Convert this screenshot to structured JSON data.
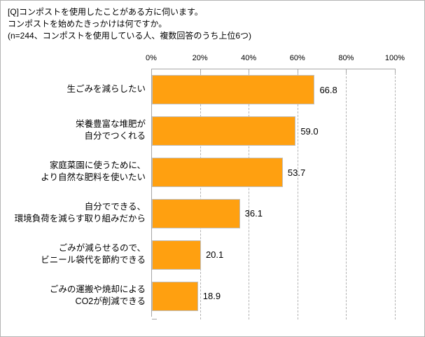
{
  "title": "[Q]コンポストを使用したことがある方に伺います。\nコンポストを始めたきっかけは何ですか。\n(n=244、コンポストを使用している人、複数回答のうち上位6つ)",
  "chart_data": {
    "type": "bar",
    "orientation": "horizontal",
    "title": "コンポストを始めたきっかけ（上位6つ）",
    "categories": [
      "生ごみを減らしたい",
      "栄養豊富な堆肥が\n自分でつくれる",
      "家庭菜園に使うために、\nより自然な肥料を使いたい",
      "自分でできる、\n環境負荷を減らす取り組みだから",
      "ごみが減らせるので、\nビニール袋代を節約できる",
      "ごみの運搬や焼却による\nCO2が削減できる"
    ],
    "values": [
      66.8,
      59.0,
      53.7,
      36.1,
      20.1,
      18.9
    ],
    "value_labels": [
      "66.8",
      "59.0",
      "53.7",
      "36.1",
      "20.1",
      "18.9"
    ],
    "xlim": [
      0,
      100
    ],
    "x_tick_labels": [
      "0%",
      "20%",
      "40%",
      "60%",
      "80%",
      "100%"
    ],
    "x_tick_values": [
      0,
      20,
      40,
      60,
      80,
      100
    ],
    "grid": "vertical dashed gridlines at 20% intervals",
    "legend": "none",
    "bar_color": "#FFA010",
    "bar_border_color": "#C0C0C0",
    "axis_color": "#A6A6A6",
    "gridline_color": "#B3B3B3",
    "text_color": "#000000"
  }
}
